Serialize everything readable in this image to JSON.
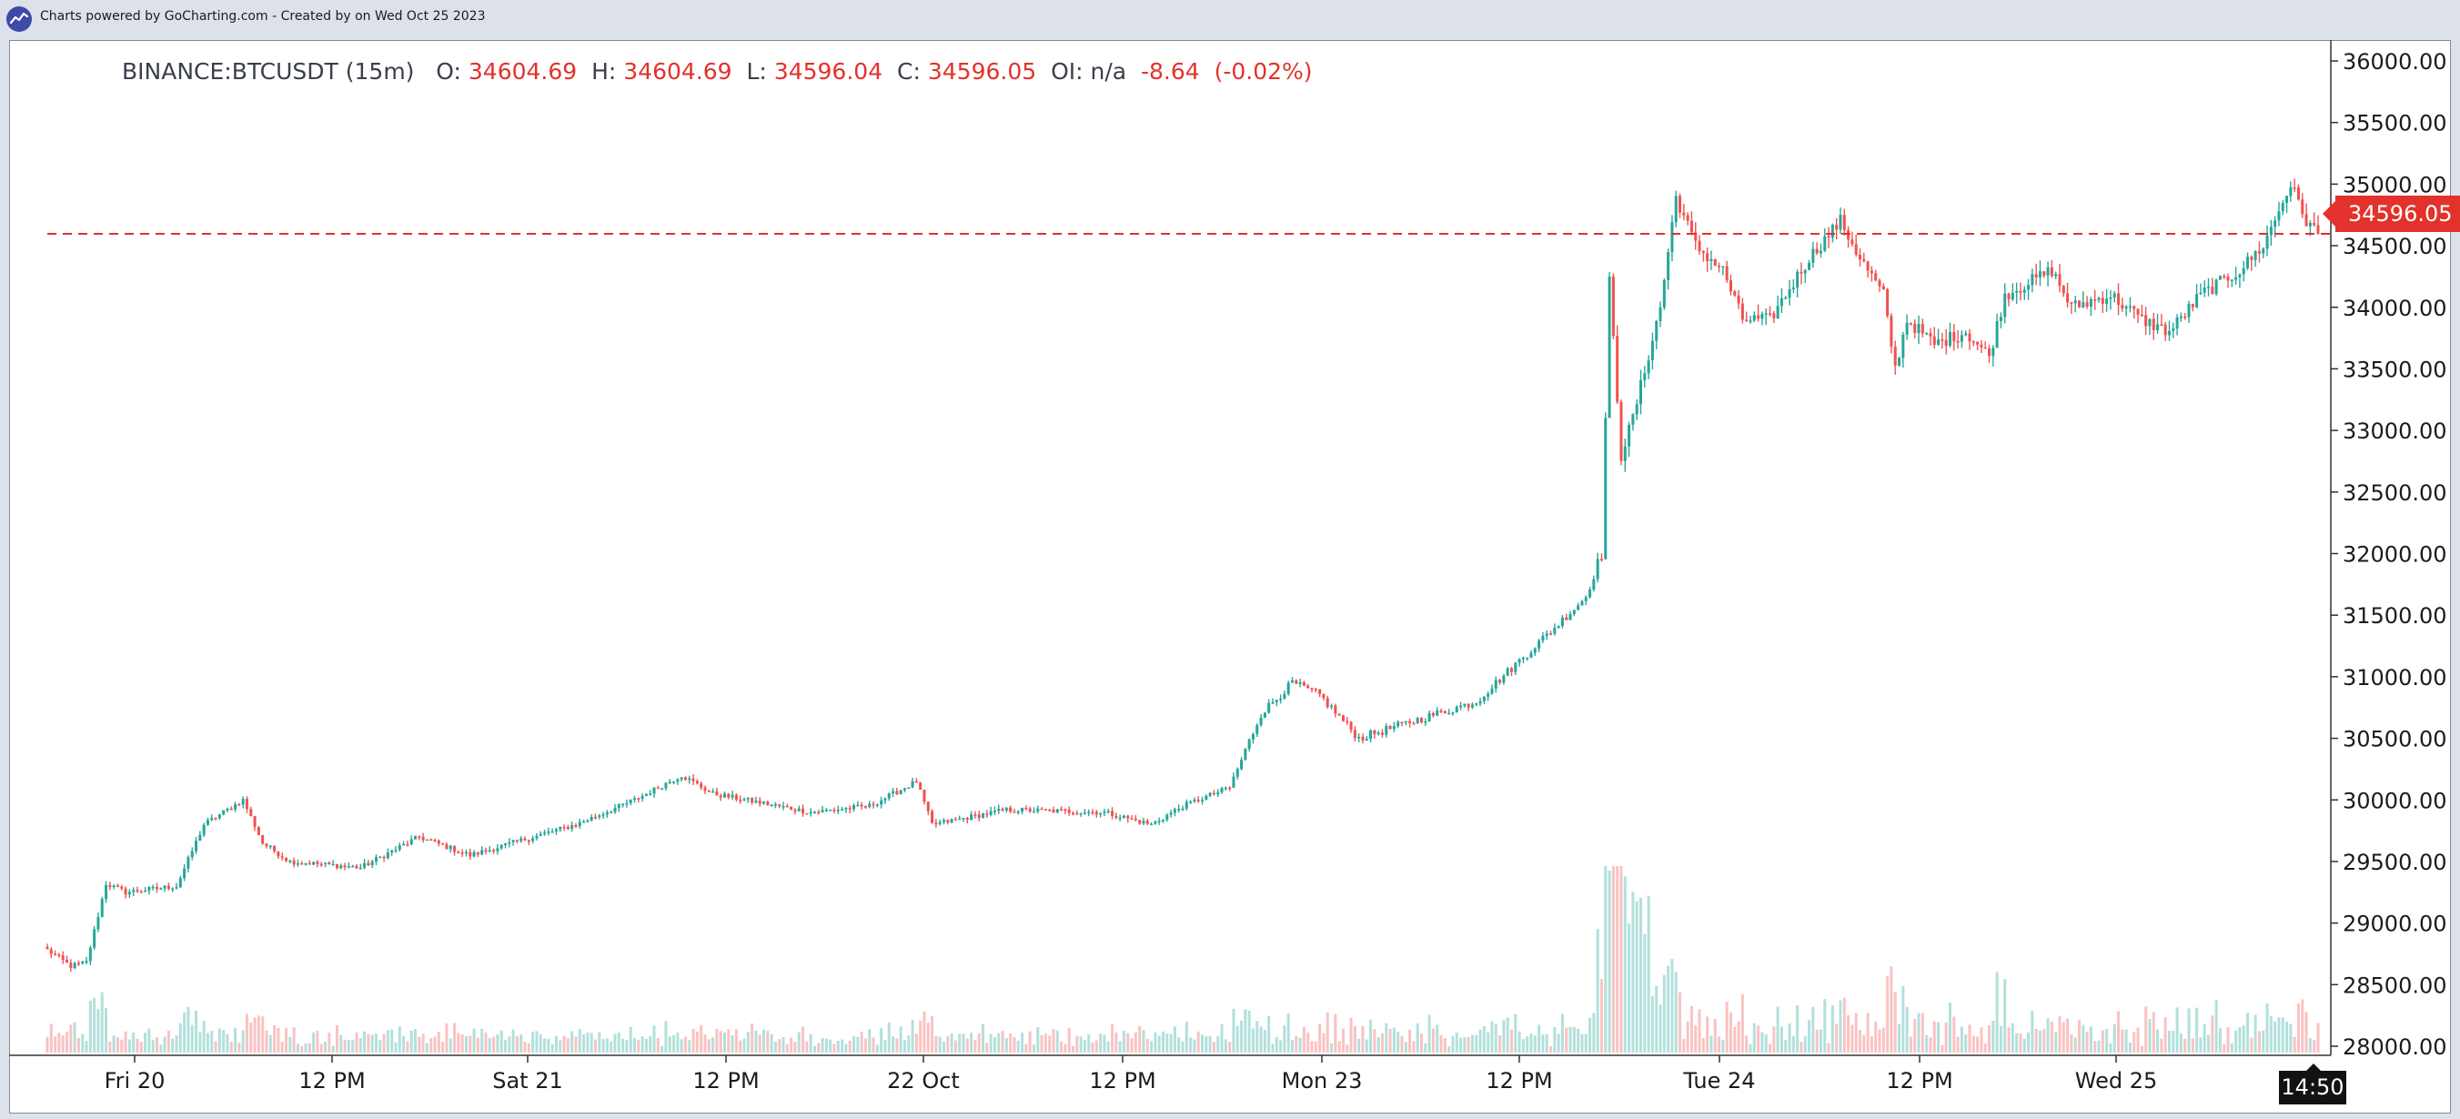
{
  "header": {
    "credit_text": "Charts powered by GoCharting.com - Created by  on Wed Oct 25 2023",
    "logo_icon": "gocharting-logo-icon"
  },
  "legend": {
    "symbol": "BINANCE:BTCUSDT (15m)",
    "open_label": "O:",
    "open_value": "34604.69",
    "high_label": "H:",
    "high_value": "34604.69",
    "low_label": "L:",
    "low_value": "34596.04",
    "close_label": "C:",
    "close_value": "34596.05",
    "oi_label": "OI:",
    "oi_value": "n/a",
    "change": "-8.64",
    "change_pct": "(-0.02%)"
  },
  "current_price_tag": "34596.05",
  "crosshair_time_tag": "14:50",
  "colors": {
    "up": "#26a69a",
    "down": "#ef5350",
    "last_price_line": "#e2322b"
  },
  "chart_data": {
    "type": "candlestick",
    "symbol": "BINANCE:BTCUSDT",
    "interval": "15m",
    "ylim": [
      27950,
      36100
    ],
    "y_ticks": [
      "36000.00",
      "35500.00",
      "35000.00",
      "34500.00",
      "34000.00",
      "33500.00",
      "33000.00",
      "32500.00",
      "32000.00",
      "31500.00",
      "31000.00",
      "30500.00",
      "30000.00",
      "29500.00",
      "29000.00",
      "28500.00",
      "28000.00"
    ],
    "x_ticks": [
      "Fri 20",
      "12 PM",
      "Sat 21",
      "12 PM",
      "22 Oct",
      "12 PM",
      "Mon 23",
      "12 PM",
      "Tue 24",
      "12 PM",
      "Wed 25"
    ],
    "last_price": 34596.05,
    "path_keypoints": [
      {
        "i": 0,
        "p": 28780
      },
      {
        "i": 6,
        "p": 28650
      },
      {
        "i": 10,
        "p": 28680
      },
      {
        "i": 15,
        "p": 29320
      },
      {
        "i": 20,
        "p": 29250
      },
      {
        "i": 33,
        "p": 29300
      },
      {
        "i": 40,
        "p": 29800
      },
      {
        "i": 50,
        "p": 30000
      },
      {
        "i": 55,
        "p": 29650
      },
      {
        "i": 62,
        "p": 29500
      },
      {
        "i": 80,
        "p": 29450
      },
      {
        "i": 95,
        "p": 29700
      },
      {
        "i": 108,
        "p": 29550
      },
      {
        "i": 135,
        "p": 29800
      },
      {
        "i": 150,
        "p": 30000
      },
      {
        "i": 162,
        "p": 30200
      },
      {
        "i": 170,
        "p": 30050
      },
      {
        "i": 195,
        "p": 29900
      },
      {
        "i": 210,
        "p": 29950
      },
      {
        "i": 222,
        "p": 30150
      },
      {
        "i": 226,
        "p": 29800
      },
      {
        "i": 245,
        "p": 29920
      },
      {
        "i": 270,
        "p": 29900
      },
      {
        "i": 282,
        "p": 29800
      },
      {
        "i": 290,
        "p": 29950
      },
      {
        "i": 302,
        "p": 30100
      },
      {
        "i": 310,
        "p": 30700
      },
      {
        "i": 318,
        "p": 30950
      },
      {
        "i": 325,
        "p": 30850
      },
      {
        "i": 335,
        "p": 30500
      },
      {
        "i": 350,
        "p": 30650
      },
      {
        "i": 365,
        "p": 30800
      },
      {
        "i": 375,
        "p": 31100
      },
      {
        "i": 385,
        "p": 31400
      },
      {
        "i": 393,
        "p": 31650
      },
      {
        "i": 397,
        "p": 32000
      },
      {
        "i": 399,
        "p": 34200
      },
      {
        "i": 402,
        "p": 32800
      },
      {
        "i": 405,
        "p": 33100
      },
      {
        "i": 412,
        "p": 34000
      },
      {
        "i": 416,
        "p": 34900
      },
      {
        "i": 421,
        "p": 34500
      },
      {
        "i": 428,
        "p": 34300
      },
      {
        "i": 433,
        "p": 33900
      },
      {
        "i": 440,
        "p": 33900
      },
      {
        "i": 450,
        "p": 34400
      },
      {
        "i": 458,
        "p": 34700
      },
      {
        "i": 463,
        "p": 34400
      },
      {
        "i": 469,
        "p": 34100
      },
      {
        "i": 472,
        "p": 33500
      },
      {
        "i": 475,
        "p": 33900
      },
      {
        "i": 482,
        "p": 33700
      },
      {
        "i": 490,
        "p": 33800
      },
      {
        "i": 496,
        "p": 33600
      },
      {
        "i": 500,
        "p": 34100
      },
      {
        "i": 512,
        "p": 34300
      },
      {
        "i": 517,
        "p": 34000
      },
      {
        "i": 527,
        "p": 34100
      },
      {
        "i": 535,
        "p": 33900
      },
      {
        "i": 542,
        "p": 33800
      },
      {
        "i": 550,
        "p": 34100
      },
      {
        "i": 560,
        "p": 34300
      },
      {
        "i": 566,
        "p": 34500
      },
      {
        "i": 573,
        "p": 35000
      },
      {
        "i": 577,
        "p": 34700
      },
      {
        "i": 580,
        "p": 34596
      }
    ]
  }
}
